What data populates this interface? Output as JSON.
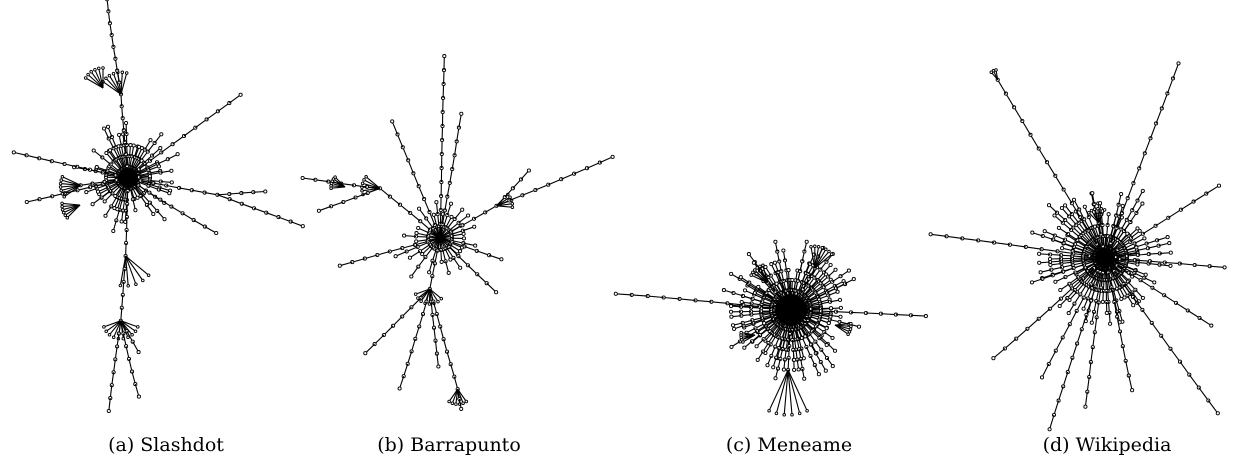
{
  "figure": {
    "panels": [
      {
        "id": "a",
        "caption": "(a) Slashdot"
      },
      {
        "id": "b",
        "caption": "(b) Barrapunto"
      },
      {
        "id": "c",
        "caption": "(c) Meneame"
      },
      {
        "id": "d",
        "caption": "(d) Wikipedia"
      }
    ]
  },
  "colors": {
    "stroke": "#000000",
    "background": "#ffffff"
  }
}
